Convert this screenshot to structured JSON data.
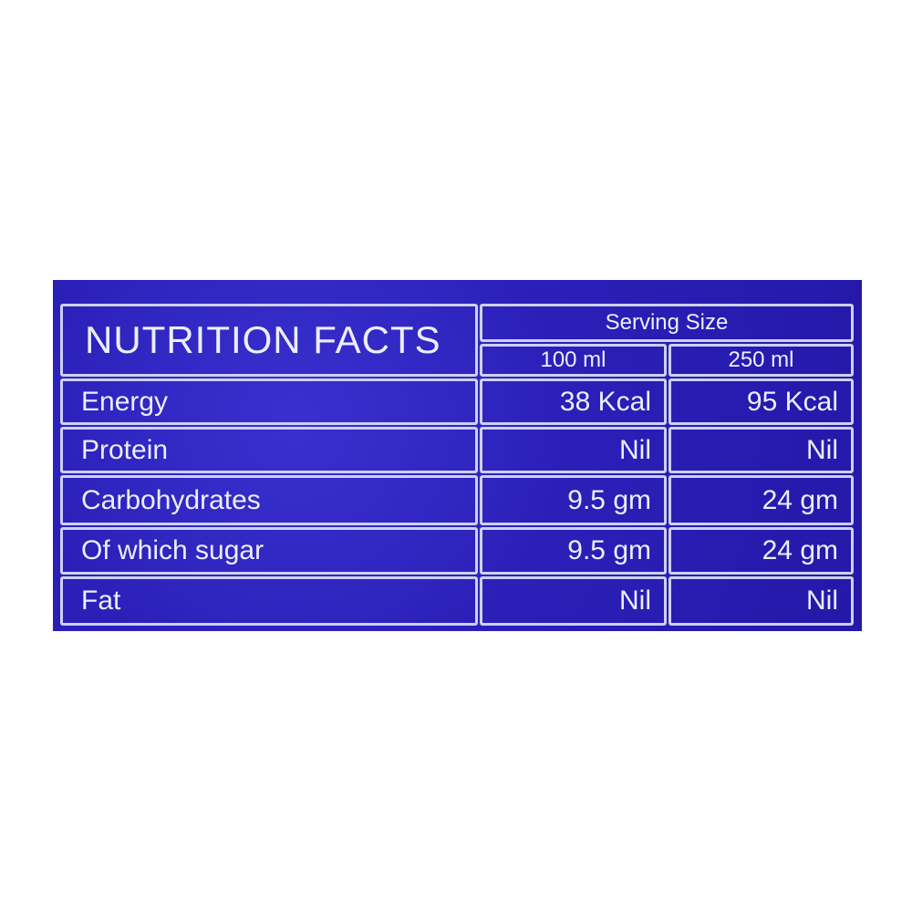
{
  "header": {
    "title": "NUTRITION FACTS",
    "serving_size": "Serving Size",
    "columns": [
      "100 ml",
      "250 ml"
    ]
  },
  "table": {
    "rows": [
      [
        "Energy",
        "38 Kcal",
        "95 Kcal"
      ],
      [
        "Protein",
        "Nil",
        "Nil"
      ],
      [
        "Carbohydrates",
        "9.5 gm",
        "24 gm"
      ],
      [
        "Of which sugar",
        "9.5 gm",
        "24 gm"
      ],
      [
        "Fat",
        "Nil",
        "Nil"
      ]
    ]
  }
}
